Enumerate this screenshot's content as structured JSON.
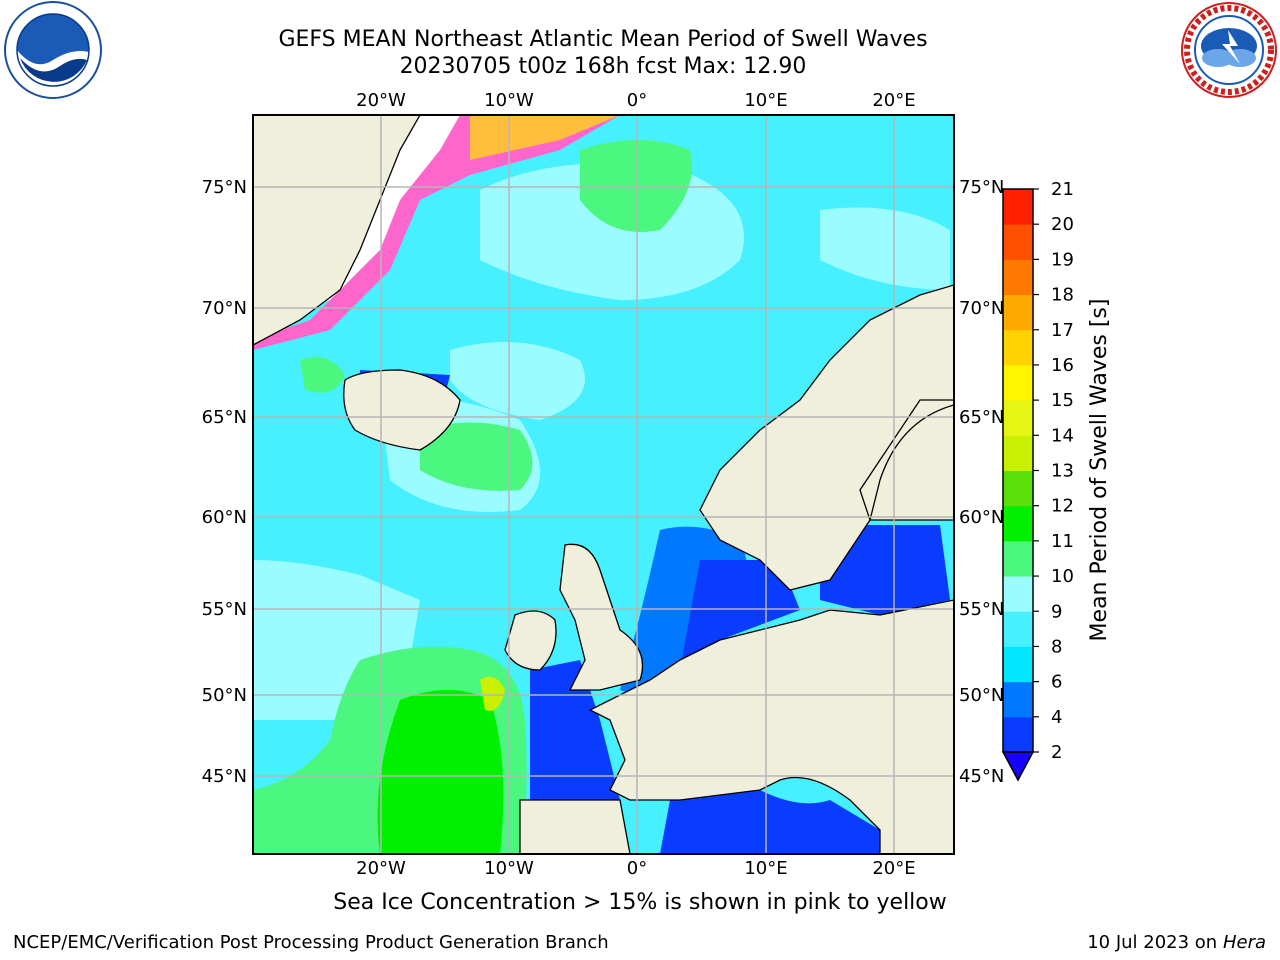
{
  "header": {
    "title_line1": "GEFS MEAN Northeast Atlantic Mean Period of Swell Waves",
    "title_line2": "20230705 t00z 168h fcst   Max: 12.90"
  },
  "logos": {
    "left": "noaa-logo-icon",
    "right": "nws-logo-icon"
  },
  "map": {
    "lon_labels": [
      "20°W",
      "10°W",
      "0°",
      "10°E",
      "20°E"
    ],
    "lat_labels": [
      "75°N",
      "70°N",
      "65°N",
      "60°N",
      "55°N",
      "50°N",
      "45°N"
    ],
    "colors": {
      "land": "#efefdc",
      "grid": "#b5b5b5",
      "white_ice": "#ffffff"
    }
  },
  "colorbar": {
    "title": "Mean Period of Swell Waves [s]",
    "ticks": [
      "2",
      "4",
      "6",
      "8",
      "9",
      "10",
      "11",
      "12",
      "13",
      "14",
      "15",
      "16",
      "17",
      "18",
      "19",
      "20",
      "21"
    ],
    "colors": [
      "#0a3cff",
      "#0078ff",
      "#00e6ff",
      "#46f0ff",
      "#9afcff",
      "#4cf780",
      "#00f000",
      "#5ce00a",
      "#c8f000",
      "#e6f514",
      "#fff500",
      "#ffd200",
      "#ffaa00",
      "#ff7800",
      "#ff5000",
      "#ff2000"
    ],
    "under_color": "#1800ff"
  },
  "note": "Sea Ice Concentration > 15% is shown in pink to yellow",
  "footer": {
    "left": "NCEP/EMC/Verification Post Processing Product Generation Branch",
    "right_date": "10 Jul 2023 on",
    "right_host": "Hera"
  }
}
